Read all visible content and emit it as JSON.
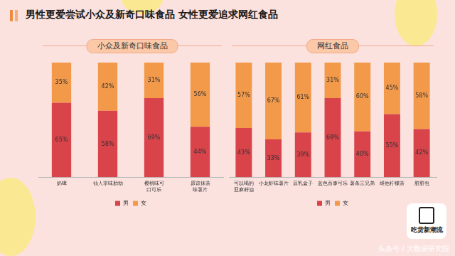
{
  "title": "男性更爱尝试小众及新奇口味食品 女性更爱追求网红食品",
  "badge": "吃货新潮流",
  "watermark": "头条号 / 大数据研究院",
  "chart_data": [
    {
      "type": "bar",
      "title": "小众及新奇口味食品",
      "categories": [
        "奶啤",
        "仙人掌味胎动",
        "樱桃味可口可乐",
        "原谅抹茶味薯片"
      ],
      "series": [
        {
          "name": "男",
          "color": "#d9434a",
          "values": [
            65,
            58,
            69,
            44
          ],
          "value_labels": [
            "65%",
            "58%",
            "69%",
            "44%"
          ]
        },
        {
          "name": "女",
          "color": "#f39a4a",
          "values": [
            35,
            42,
            31,
            56
          ],
          "value_labels": [
            "35%",
            "42%",
            "31%",
            "56%"
          ]
        }
      ],
      "stacked": true,
      "ylim": [
        0,
        100
      ],
      "grid": false,
      "tick_labels": "x",
      "data_labels": true,
      "legend": "bottom"
    },
    {
      "type": "bar",
      "title": "网红食品",
      "categories": [
        "可以喝的亚麻籽油",
        "小龙虾味薯片",
        "豆乳盒子",
        "蓝色百事可乐",
        "薯条三兄弟",
        "维他柠檬茶",
        "脏脏包"
      ],
      "series": [
        {
          "name": "男",
          "color": "#d9434a",
          "values": [
            43,
            33,
            39,
            69,
            40,
            55,
            42
          ],
          "value_labels": [
            "43%",
            "33%",
            "39%",
            "69%",
            "40%",
            "55%",
            "42%"
          ]
        },
        {
          "name": "女",
          "color": "#f39a4a",
          "values": [
            57,
            67,
            61,
            31,
            60,
            45,
            58
          ],
          "value_labels": [
            "57%",
            "67%",
            "61%",
            "31%",
            "60%",
            "45%",
            "58%"
          ]
        }
      ],
      "stacked": true,
      "ylim": [
        0,
        100
      ],
      "grid": false,
      "tick_labels": "x",
      "data_labels": true,
      "legend": "bottom"
    }
  ]
}
